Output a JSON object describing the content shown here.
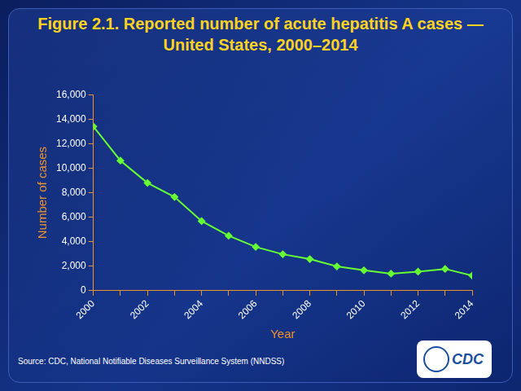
{
  "chart_data": {
    "type": "line",
    "title": [
      "Figure 2.1. Reported number of acute hepatitis A cases —",
      "United States, 2000–2014"
    ],
    "x_label": "Year",
    "y_label": "Number of cases",
    "source": "Source: CDC, National Notifiable Diseases Surveillance System (NNDSS)",
    "logo": "CDC",
    "categories": [
      "2000",
      null,
      "2002",
      null,
      "2004",
      null,
      "2006",
      null,
      "2008",
      null,
      "2010",
      null,
      "2012",
      null,
      "2014"
    ],
    "values": [
      13397,
      10616,
      8795,
      7653,
      5683,
      4488,
      3579,
      2979,
      2585,
      1987,
      1670,
      1398,
      1562,
      1781,
      1239
    ],
    "color": "#66ff33",
    "marker": "diamond",
    "line_style": "solid",
    "ylim": [
      0,
      16000
    ],
    "yticks": [
      0,
      {
        "value": 2000,
        "label": "2,000"
      },
      {
        "value": 4000,
        "label": "4,000"
      },
      {
        "value": 6000,
        "label": "6,000"
      },
      {
        "value": 8000,
        "label": "8,000"
      },
      {
        "value": 10000,
        "label": "10,000"
      },
      {
        "value": 12000,
        "label": "12,000"
      },
      {
        "value": 14000,
        "label": "14,000"
      },
      {
        "value": 16000,
        "label": "16,000"
      }
    ],
    "grid": false
  }
}
